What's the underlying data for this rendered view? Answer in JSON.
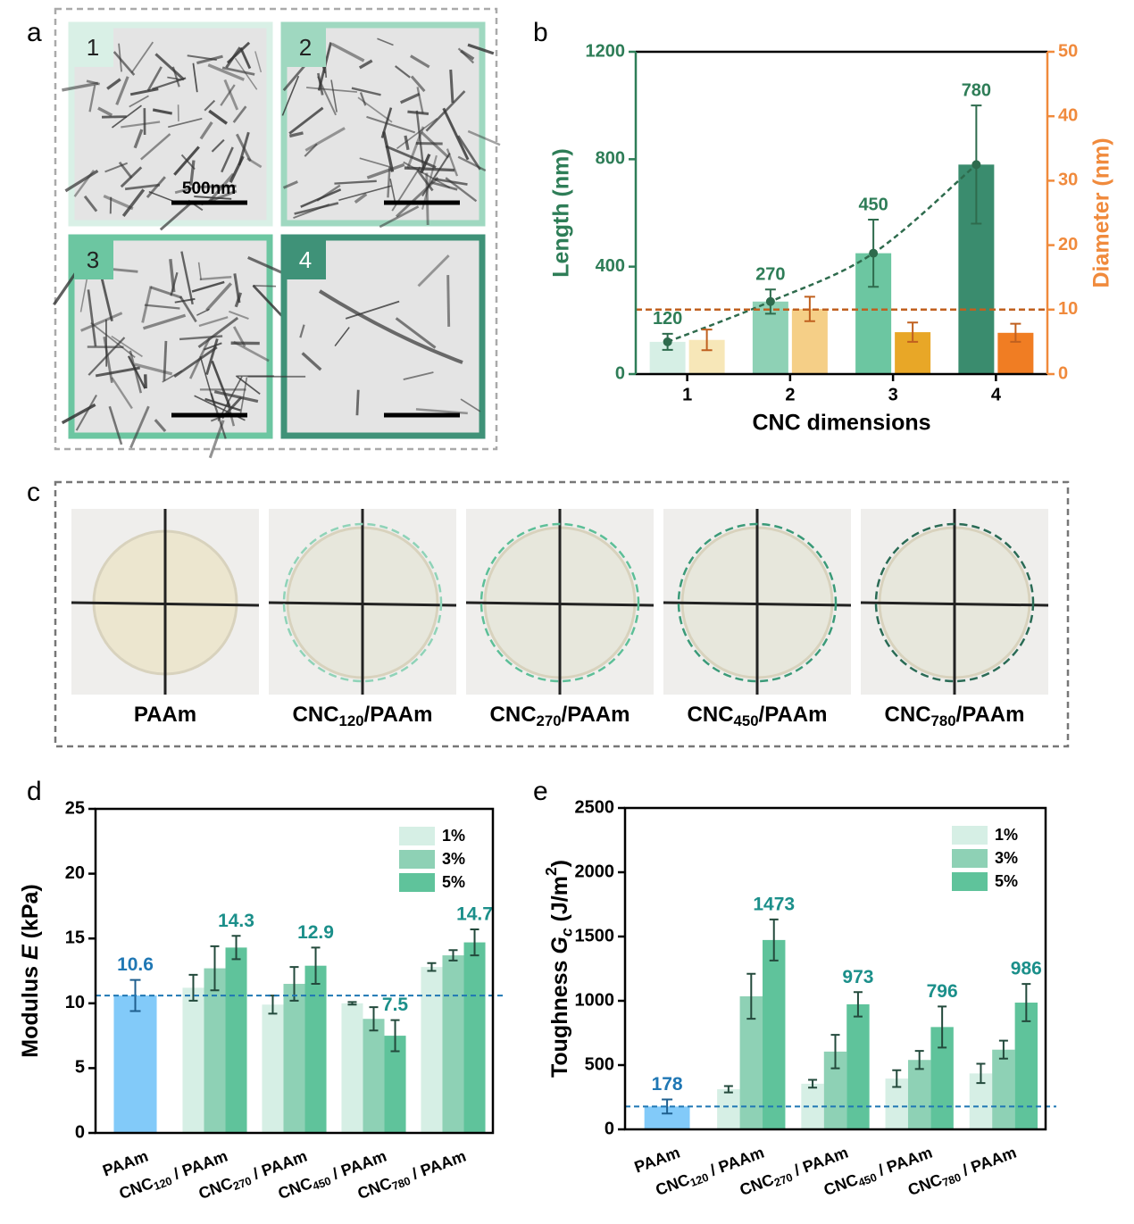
{
  "panel_labels": [
    "a",
    "b",
    "c",
    "d",
    "e"
  ],
  "panel_a": {
    "images": [
      {
        "label": "1",
        "border": "#d9f0e6"
      },
      {
        "label": "2",
        "border": "#9fd8c0"
      },
      {
        "label": "3",
        "border": "#6cc6a1"
      },
      {
        "label": "4",
        "border": "#3f9278"
      }
    ],
    "scale_bar": "500nm"
  },
  "panel_c": {
    "samples": [
      {
        "label": [
          "PAAm"
        ]
      },
      {
        "label": [
          "CNC",
          "120",
          "/PAAm"
        ],
        "outline": "#8fd3b8"
      },
      {
        "label": [
          "CNC",
          "270",
          "/PAAm"
        ],
        "outline": "#5dbf98"
      },
      {
        "label": [
          "CNC",
          "450",
          "/PAAm"
        ],
        "outline": "#3a9a78"
      },
      {
        "label": [
          "CNC",
          "780",
          "/PAAm"
        ],
        "outline": "#2a6b55"
      }
    ]
  },
  "chart_data": [
    {
      "type": "bar_dual",
      "x_label": "CNC dimensions",
      "y_label": "Length (nm)",
      "y2_label": "Diameter (nm)",
      "y_color": "#2e7d57",
      "y2_color": "#f08a3c",
      "categories": [
        "1",
        "2",
        "3",
        "4"
      ],
      "ylim": [
        0,
        1200
      ],
      "yticks": [
        0,
        400,
        800,
        1200
      ],
      "y2lim": [
        0,
        50
      ],
      "y2ticks": [
        0,
        10,
        20,
        30,
        40,
        50
      ],
      "series": [
        {
          "axis": "y",
          "colors": [
            "#d6efe5",
            "#8ed1b5",
            "#6cc6a1",
            "#3a8c6e"
          ],
          "values": [
            120,
            270,
            450,
            780
          ],
          "errors": [
            30,
            45,
            125,
            220
          ],
          "error_color": "#2e6b4d",
          "show_labels": true,
          "trend": true
        },
        {
          "axis": "y2",
          "colors": [
            "#f7e7b8",
            "#f5cf87",
            "#e8a727",
            "#f07d23"
          ],
          "values": [
            5.3,
            10.1,
            6.5,
            6.4
          ],
          "errors": [
            1.6,
            1.9,
            1.5,
            1.4
          ],
          "error_color": "#c0601f"
        }
      ],
      "reference_line": {
        "axis": "y2",
        "value": 10,
        "color": "#c0601f"
      }
    },
    {
      "type": "grouped_bar",
      "y_label": [
        "Modulus ",
        "E",
        " (kPa)"
      ],
      "categories": [
        [
          "PAAm"
        ],
        [
          "CNC",
          "120",
          " / PAAm"
        ],
        [
          "CNC",
          "270",
          " / PAAm"
        ],
        [
          "CNC",
          "450",
          " / PAAm"
        ],
        [
          "CNC",
          "780",
          " / PAAm"
        ]
      ],
      "ylim": [
        0,
        25
      ],
      "yticks": [
        0,
        5,
        10,
        15,
        20,
        25
      ],
      "legend": "upper right",
      "reference": {
        "category": 0,
        "value": 10.6,
        "error": 1.2,
        "color": "#82caf9",
        "label_color": "#1f77b4"
      },
      "label_color": "#1b8f8a",
      "series": [
        {
          "name": "1%",
          "color": "#d6efe5",
          "values": [
            null,
            11.2,
            9.9,
            10.0,
            12.8
          ],
          "errors": [
            null,
            1.0,
            0.7,
            0.1,
            0.3
          ]
        },
        {
          "name": "3%",
          "color": "#8ed1b5",
          "values": [
            null,
            12.7,
            11.5,
            8.8,
            13.7
          ],
          "errors": [
            null,
            1.7,
            1.3,
            0.9,
            0.4
          ]
        },
        {
          "name": "5%",
          "color": "#5fc39b",
          "values": [
            null,
            14.3,
            12.9,
            7.5,
            14.7
          ],
          "errors": [
            null,
            0.9,
            1.4,
            1.2,
            1.0
          ],
          "show_labels": true
        }
      ]
    },
    {
      "type": "grouped_bar",
      "y_label": [
        "Toughness ",
        "G",
        "c",
        " (J/m",
        "2",
        ")"
      ],
      "categories": [
        [
          "PAAm"
        ],
        [
          "CNC",
          "120",
          " / PAAm"
        ],
        [
          "CNC",
          "270",
          " / PAAm"
        ],
        [
          "CNC",
          "450",
          " / PAAm"
        ],
        [
          "CNC",
          "780",
          " / PAAm"
        ]
      ],
      "ylim": [
        0,
        2500
      ],
      "yticks": [
        0,
        500,
        1000,
        1500,
        2000,
        2500
      ],
      "legend": "upper right",
      "reference": {
        "category": 0,
        "value": 178,
        "error": 55,
        "color": "#82caf9",
        "label_color": "#1f77b4"
      },
      "label_color": "#1b8f8a",
      "series": [
        {
          "name": "1%",
          "color": "#d6efe5",
          "values": [
            null,
            312,
            355,
            395,
            435
          ],
          "errors": [
            null,
            25,
            30,
            65,
            75
          ]
        },
        {
          "name": "3%",
          "color": "#8ed1b5",
          "values": [
            null,
            1035,
            605,
            540,
            620
          ],
          "errors": [
            null,
            175,
            130,
            70,
            70
          ]
        },
        {
          "name": "5%",
          "color": "#5fc39b",
          "values": [
            null,
            1473,
            973,
            796,
            986
          ],
          "errors": [
            null,
            160,
            95,
            160,
            145
          ],
          "show_labels": true
        }
      ]
    }
  ]
}
